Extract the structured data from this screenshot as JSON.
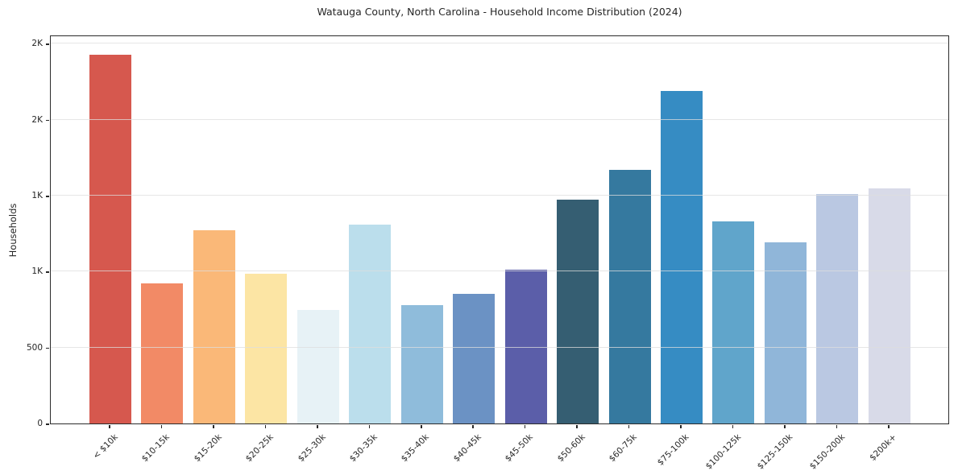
{
  "title": "Watauga County, North Carolina - Household Income Distribution (2024)",
  "chart_data": {
    "type": "bar",
    "title": "Watauga County, North Carolina - Household Income Distribution (2024)",
    "xlabel": "",
    "ylabel": "Households",
    "ylim": [
      0,
      2560
    ],
    "grid": "horizontal",
    "legend": "none",
    "yticks": [
      {
        "value": 0,
        "label": "0"
      },
      {
        "value": 500,
        "label": "500"
      },
      {
        "value": 1000,
        "label": "1K"
      },
      {
        "value": 1500,
        "label": "1K"
      },
      {
        "value": 2000,
        "label": "2K"
      },
      {
        "value": 2500,
        "label": "2K"
      }
    ],
    "categories": [
      "< $10k",
      "$10-15k",
      "$15-20k",
      "$20-25k",
      "$25-30k",
      "$30-35k",
      "$35-40k",
      "$40-45k",
      "$45-50k",
      "$50-60k",
      "$60-75k",
      "$75-100k",
      "$100-125k",
      "$125-150k",
      "$150-200k",
      "$200k+"
    ],
    "values": [
      2430,
      920,
      1270,
      985,
      745,
      1310,
      780,
      855,
      1010,
      1475,
      1670,
      2190,
      1330,
      1195,
      1510,
      1550
    ],
    "bar_colors": [
      "#d6584e",
      "#f28a66",
      "#fab878",
      "#fce5a4",
      "#e7f2f6",
      "#bbdeec",
      "#8fbcdb",
      "#6b92c4",
      "#5b5ea9",
      "#355e72",
      "#35799f",
      "#368cc3",
      "#60a5cb",
      "#90b6d9",
      "#bac8e2",
      "#d8dae8"
    ],
    "grid_color": "#dedede",
    "spine_color": "#2b2b2b",
    "text_color": "#262626"
  }
}
